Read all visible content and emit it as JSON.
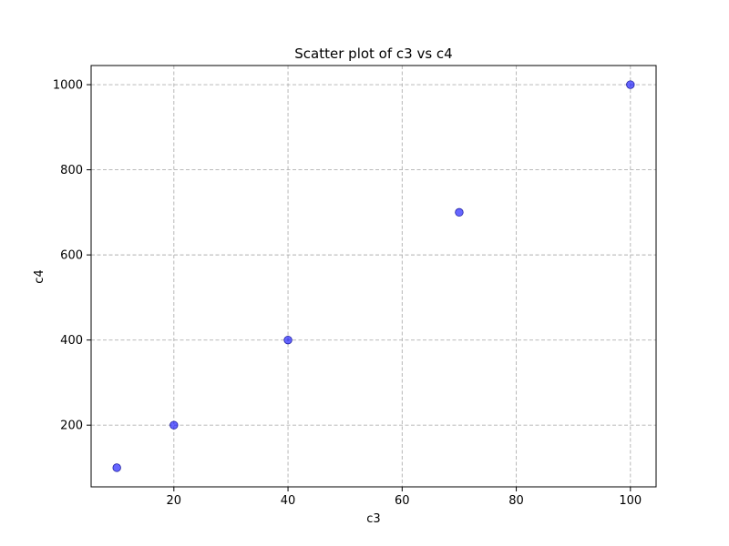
{
  "chart_data": {
    "type": "scatter",
    "title": "Scatter plot of c3 vs c4",
    "xlabel": "c3",
    "ylabel": "c4",
    "xlim": [
      5.5,
      104.5
    ],
    "ylim": [
      55,
      1045
    ],
    "xticks": [
      20,
      40,
      60,
      80,
      100
    ],
    "yticks": [
      200,
      400,
      600,
      800,
      1000
    ],
    "grid": true,
    "points": [
      {
        "x": 10,
        "y": 100
      },
      {
        "x": 20,
        "y": 200
      },
      {
        "x": 40,
        "y": 400
      },
      {
        "x": 70,
        "y": 700
      },
      {
        "x": 100,
        "y": 1000
      }
    ],
    "marker_color": "#0000ff",
    "marker_edge_color": "#00008b",
    "grid_color": "#b0b0b0"
  }
}
